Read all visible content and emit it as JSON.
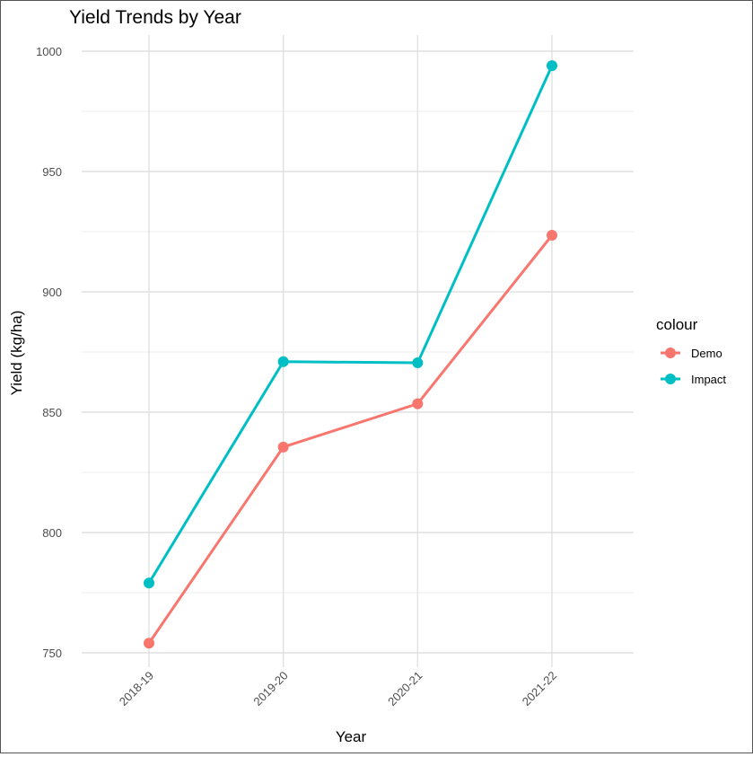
{
  "chart_data": {
    "type": "line",
    "title": "Yield Trends by Year",
    "xlabel": "Year",
    "ylabel": "Yield (kg/ha)",
    "categories": [
      "2018-19",
      "2019-20",
      "2020-21",
      "2021-22"
    ],
    "ylim": [
      745,
      1006
    ],
    "yticks": [
      750,
      800,
      850,
      900,
      950,
      1000
    ],
    "yminor": [
      775,
      825,
      875,
      925,
      975
    ],
    "grid": true,
    "legend": {
      "title": "colour",
      "placement": "right"
    },
    "series": [
      {
        "name": "Demo",
        "color": "#F8766D",
        "values": [
          754,
          835.5,
          853.5,
          923.5
        ]
      },
      {
        "name": "Impact",
        "color": "#00BFC4",
        "values": [
          779,
          871,
          870.5,
          994
        ]
      }
    ]
  }
}
